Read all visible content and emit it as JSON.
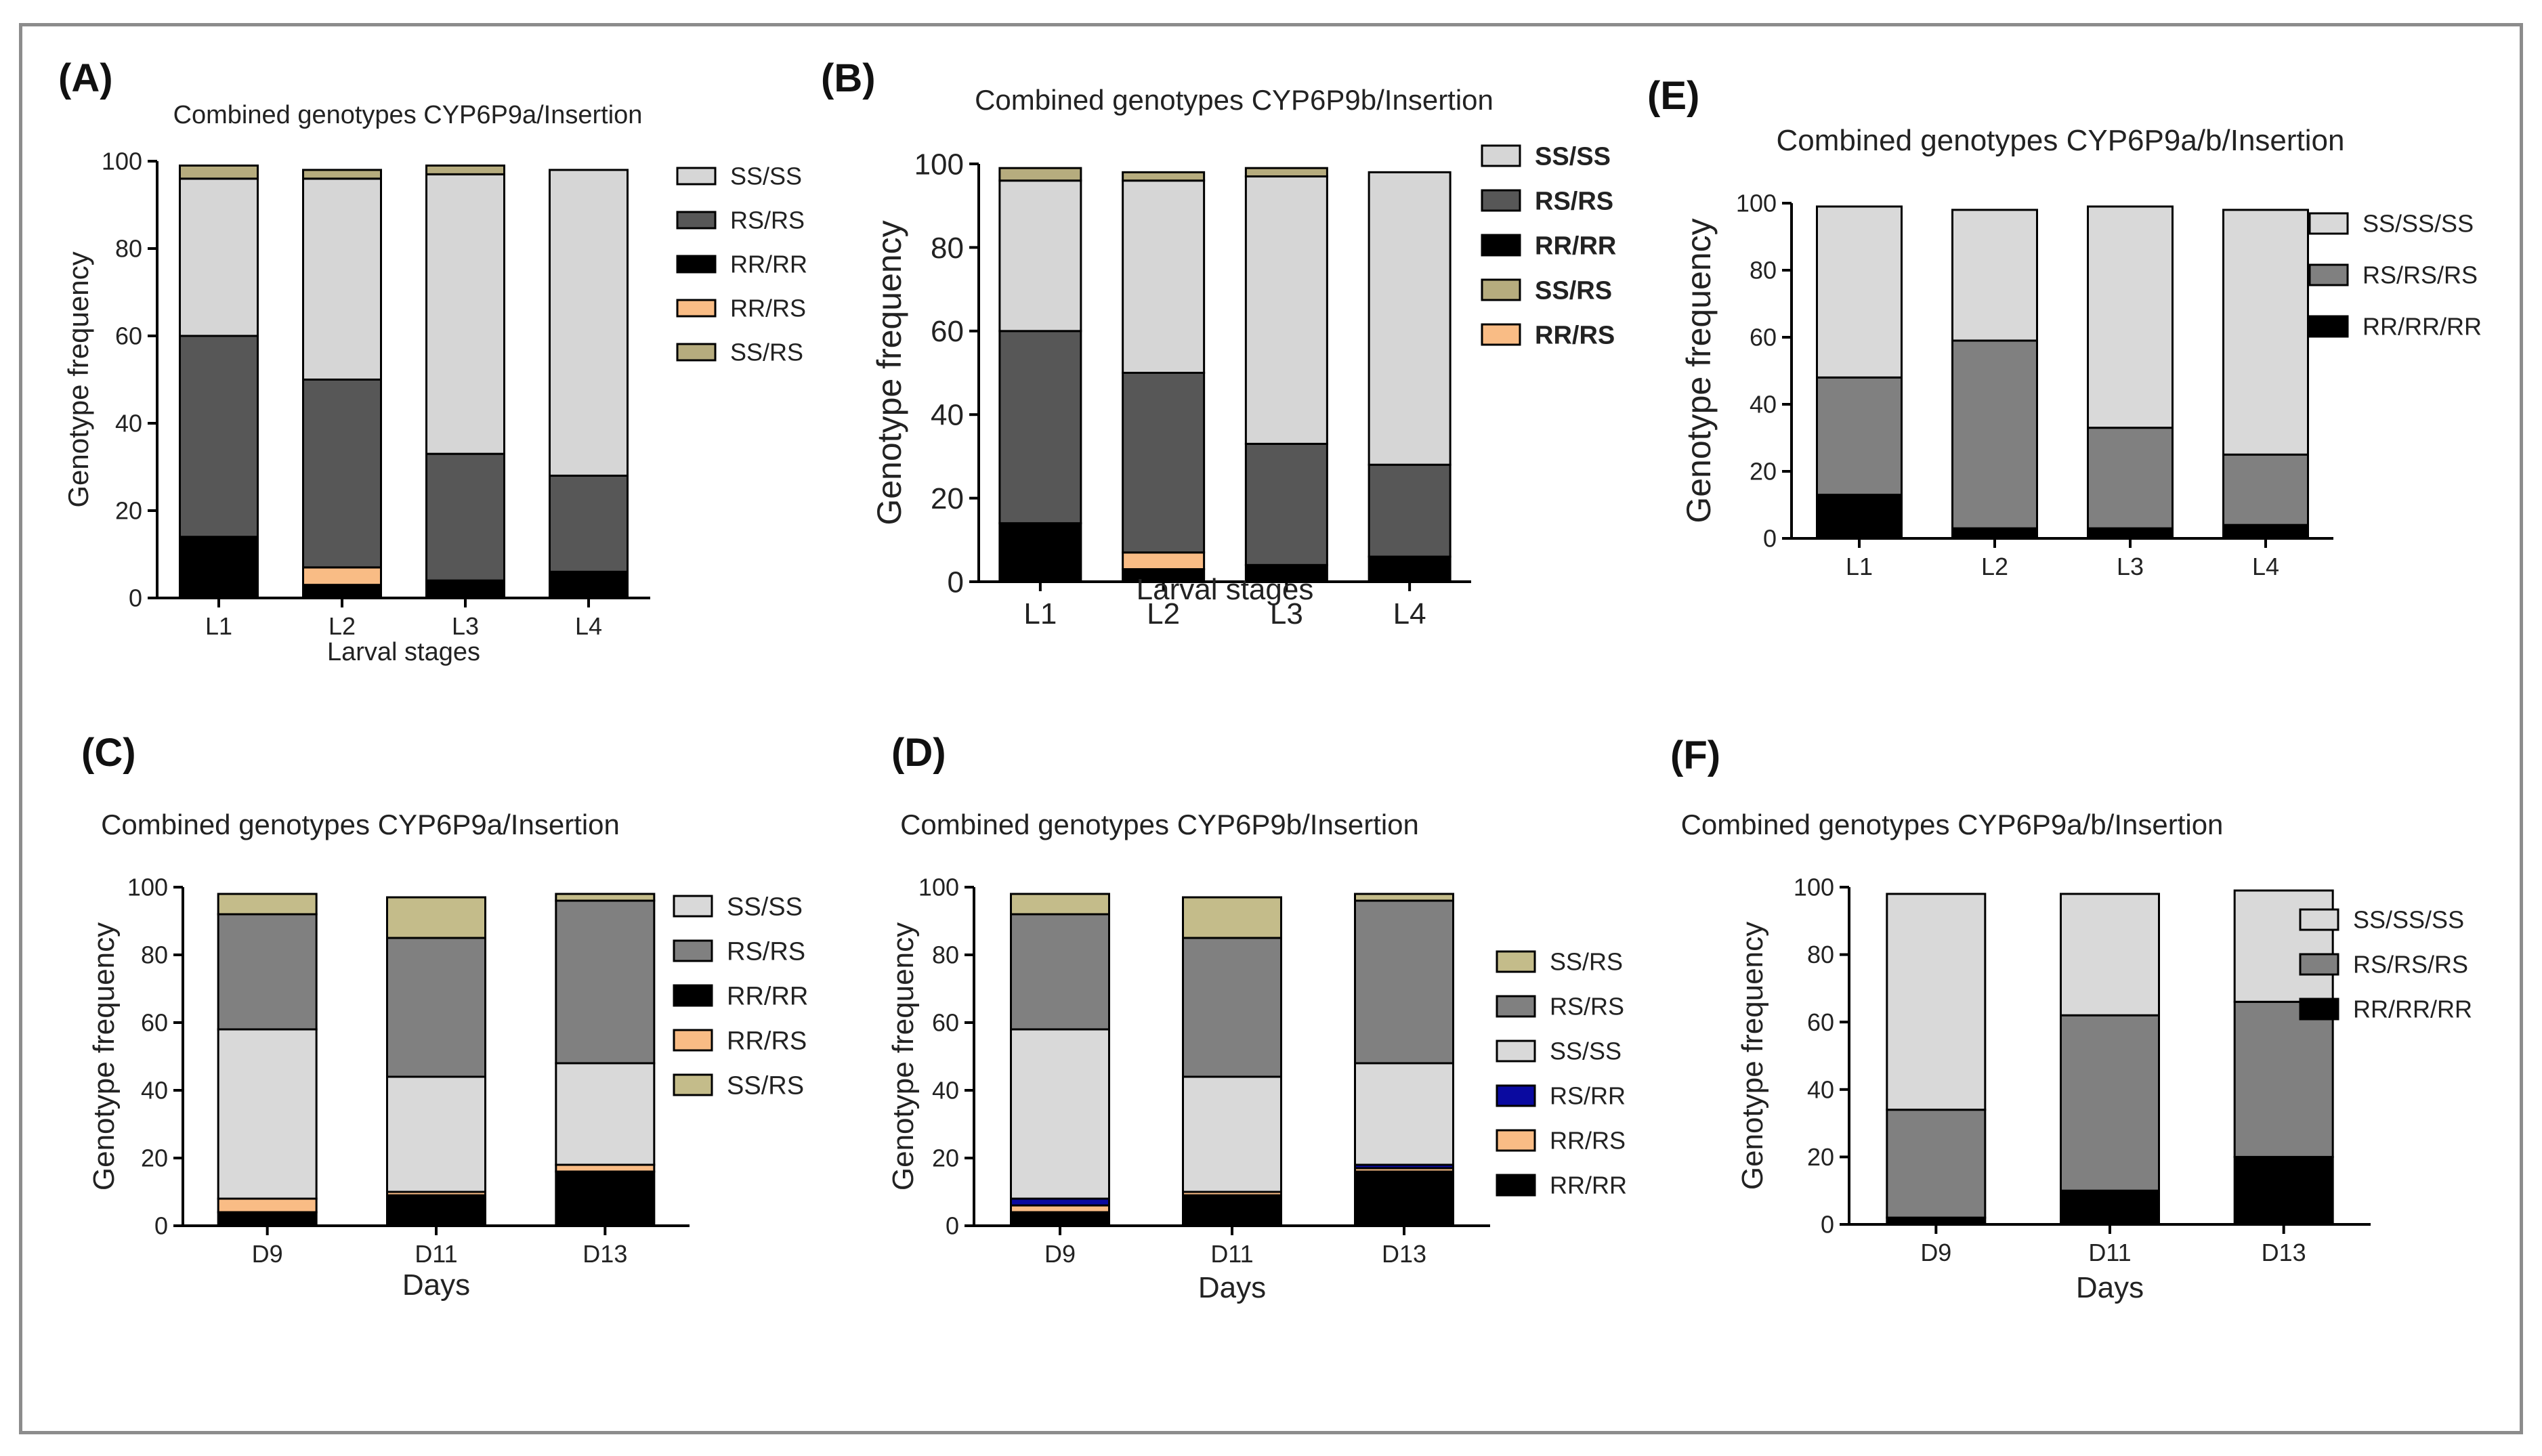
{
  "chart_data": [
    {
      "id": "A",
      "panel_label": "(A)",
      "type": "bar",
      "stacked": true,
      "title": "Combined genotypes CYP6P9a/Insertion",
      "xlabel": "Larval stages",
      "ylabel": "Genotype frequency",
      "ylim": [
        0,
        100
      ],
      "yticks": [
        "0",
        "20",
        "40",
        "60",
        "80",
        "100"
      ],
      "categories": [
        "L1",
        "L2",
        "L3",
        "L4"
      ],
      "series": [
        {
          "name": "RR/RR",
          "color": "#000000",
          "values": [
            14,
            3,
            4,
            6
          ]
        },
        {
          "name": "RR/RS",
          "color": "#f9bc85",
          "values": [
            0,
            4,
            0,
            0
          ]
        },
        {
          "name": "RS/RS",
          "color": "#575757",
          "values": [
            46,
            43,
            29,
            22
          ]
        },
        {
          "name": "SS/SS",
          "color": "#d6d6d6",
          "values": [
            36,
            46,
            64,
            70
          ]
        },
        {
          "name": "SS/RS",
          "color": "#b6ac7e",
          "values": [
            3,
            2,
            2,
            0
          ]
        }
      ],
      "legend": [
        {
          "name": "SS/SS",
          "color": "#d6d6d6"
        },
        {
          "name": "RS/RS",
          "color": "#575757"
        },
        {
          "name": "RR/RR",
          "color": "#000000"
        },
        {
          "name": "RR/RS",
          "color": "#f9bc85"
        },
        {
          "name": "SS/RS",
          "color": "#b6ac7e"
        }
      ]
    },
    {
      "id": "B",
      "panel_label": "(B)",
      "type": "bar",
      "stacked": true,
      "title": "Combined genotypes CYP6P9b/Insertion",
      "xlabel": "Larval stages",
      "ylabel": "Genotype frequency",
      "ylim": [
        0,
        100
      ],
      "yticks": [
        "0",
        "20",
        "40",
        "60",
        "80",
        "100"
      ],
      "categories": [
        "L1",
        "L2",
        "L3",
        "L4"
      ],
      "series": [
        {
          "name": "RR/RR",
          "color": "#000000",
          "values": [
            14,
            3,
            4,
            6
          ]
        },
        {
          "name": "RR/RS",
          "color": "#f9bc85",
          "values": [
            0,
            4,
            0,
            0
          ]
        },
        {
          "name": "RS/RS",
          "color": "#575757",
          "values": [
            46,
            43,
            29,
            22
          ]
        },
        {
          "name": "SS/SS",
          "color": "#d6d6d6",
          "values": [
            36,
            46,
            64,
            70
          ]
        },
        {
          "name": "SS/RS",
          "color": "#b6ac7e",
          "values": [
            3,
            2,
            2,
            0
          ]
        }
      ],
      "legend": [
        {
          "name": "SS/SS",
          "color": "#d6d6d6"
        },
        {
          "name": "RS/RS",
          "color": "#575757"
        },
        {
          "name": "RR/RR",
          "color": "#000000"
        },
        {
          "name": "SS/RS",
          "color": "#b6ac7e"
        },
        {
          "name": "RR/RS",
          "color": "#f9bc85"
        }
      ]
    },
    {
      "id": "E",
      "panel_label": "(E)",
      "type": "bar",
      "stacked": true,
      "title": "Combined genotypes CYP6P9a/b/Insertion",
      "xlabel": "",
      "ylabel": "Genotype frequency",
      "ylim": [
        0,
        100
      ],
      "yticks": [
        "0",
        "20",
        "40",
        "60",
        "80",
        "100"
      ],
      "categories": [
        "L1",
        "L2",
        "L3",
        "L4"
      ],
      "series": [
        {
          "name": "RR/RR/RR",
          "color": "#000000",
          "values": [
            13,
            3,
            3,
            4
          ]
        },
        {
          "name": "RS/RS/RS",
          "color": "#808080",
          "values": [
            35,
            56,
            30,
            21
          ]
        },
        {
          "name": "SS/SS/SS",
          "color": "#d9d9d9",
          "values": [
            51,
            39,
            66,
            73
          ]
        }
      ],
      "legend": [
        {
          "name": "SS/SS/SS",
          "color": "#d9d9d9"
        },
        {
          "name": "RS/RS/RS",
          "color": "#808080"
        },
        {
          "name": "RR/RR/RR",
          "color": "#000000"
        }
      ]
    },
    {
      "id": "C",
      "panel_label": "(C)",
      "type": "bar",
      "stacked": true,
      "title": "Combined genotypes CYP6P9a/Insertion",
      "xlabel": "Days",
      "ylabel": "Genotype frequency",
      "ylim": [
        0,
        100
      ],
      "yticks": [
        "0",
        "20",
        "40",
        "60",
        "80",
        "100"
      ],
      "categories": [
        "D9",
        "D11",
        "D13"
      ],
      "series": [
        {
          "name": "RR/RR",
          "color": "#000000",
          "values": [
            4,
            9,
            16
          ]
        },
        {
          "name": "RR/RS",
          "color": "#f9bc85",
          "values": [
            4,
            1,
            2
          ]
        },
        {
          "name": "SS/SS",
          "color": "#d9d9d9",
          "values": [
            50,
            34,
            30
          ]
        },
        {
          "name": "RS/RS",
          "color": "#808080",
          "values": [
            34,
            41,
            48
          ]
        },
        {
          "name": "SS/RS",
          "color": "#c4bc8a",
          "values": [
            6,
            12,
            2
          ]
        }
      ],
      "legend": [
        {
          "name": "SS/SS",
          "color": "#d9d9d9"
        },
        {
          "name": "RS/RS",
          "color": "#808080"
        },
        {
          "name": "RR/RR",
          "color": "#000000"
        },
        {
          "name": "RR/RS",
          "color": "#f9bc85"
        },
        {
          "name": "SS/RS",
          "color": "#c4bc8a"
        }
      ]
    },
    {
      "id": "D",
      "panel_label": "(D)",
      "type": "bar",
      "stacked": true,
      "title": "Combined genotypes CYP6P9b/Insertion",
      "xlabel": "Days",
      "ylabel": "Genotype frequency",
      "ylim": [
        0,
        100
      ],
      "yticks": [
        "0",
        "20",
        "40",
        "60",
        "80",
        "100"
      ],
      "categories": [
        "D9",
        "D11",
        "D13"
      ],
      "series": [
        {
          "name": "RR/RR",
          "color": "#000000",
          "values": [
            4,
            9,
            16
          ]
        },
        {
          "name": "RR/RS",
          "color": "#f9bc85",
          "values": [
            2,
            1,
            1
          ]
        },
        {
          "name": "RS/RR",
          "color": "#0a0aa0",
          "values": [
            2,
            0,
            1
          ]
        },
        {
          "name": "SS/SS",
          "color": "#d9d9d9",
          "values": [
            50,
            34,
            30
          ]
        },
        {
          "name": "RS/RS",
          "color": "#808080",
          "values": [
            34,
            41,
            48
          ]
        },
        {
          "name": "SS/RS",
          "color": "#c4bc8a",
          "values": [
            6,
            12,
            2
          ]
        }
      ],
      "legend": [
        {
          "name": "SS/RS",
          "color": "#c4bc8a"
        },
        {
          "name": "RS/RS",
          "color": "#808080"
        },
        {
          "name": "SS/SS",
          "color": "#d9d9d9"
        },
        {
          "name": "RS/RR",
          "color": "#0a0aa0"
        },
        {
          "name": "RR/RS",
          "color": "#f9bc85"
        },
        {
          "name": "RR/RR",
          "color": "#000000"
        }
      ]
    },
    {
      "id": "F",
      "panel_label": "(F)",
      "type": "bar",
      "stacked": true,
      "title": "Combined genotypes CYP6P9a/b/Insertion",
      "xlabel": "Days",
      "ylabel": "Genotype frequency",
      "ylim": [
        0,
        100
      ],
      "yticks": [
        "0",
        "20",
        "40",
        "60",
        "80",
        "100"
      ],
      "categories": [
        "D9",
        "D11",
        "D13"
      ],
      "series": [
        {
          "name": "RR/RR/RR",
          "color": "#000000",
          "values": [
            2,
            10,
            20
          ]
        },
        {
          "name": "RS/RS/RS",
          "color": "#808080",
          "values": [
            32,
            52,
            46
          ]
        },
        {
          "name": "SS/SS/SS",
          "color": "#d9d9d9",
          "values": [
            64,
            36,
            33
          ]
        }
      ],
      "legend": [
        {
          "name": "SS/SS/SS",
          "color": "#d9d9d9"
        },
        {
          "name": "RS/RS/RS",
          "color": "#808080"
        },
        {
          "name": "RR/RR/RR",
          "color": "#000000"
        }
      ]
    }
  ]
}
